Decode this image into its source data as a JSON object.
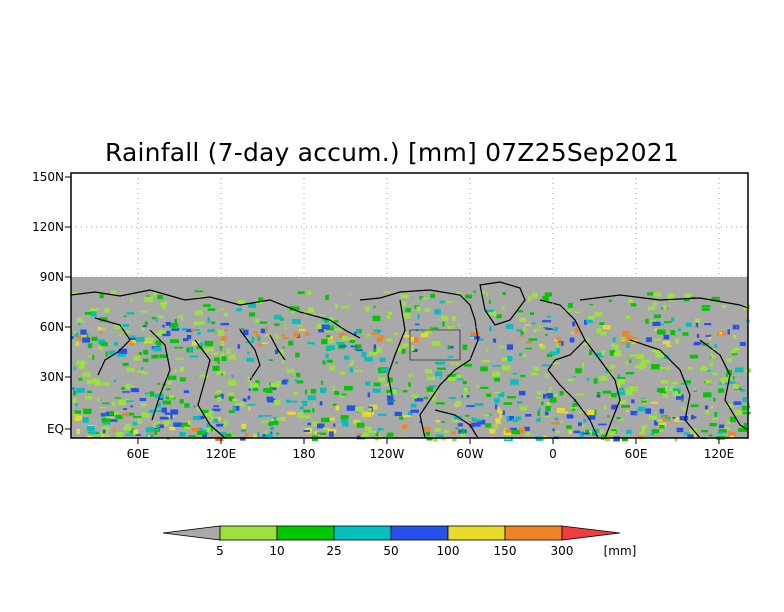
{
  "title": "Rainfall (7-day accum.) [mm] 07Z25Sep2021",
  "y_axis_ticks": [
    "150N",
    "120N",
    "90N",
    "60N",
    "30N",
    "EQ"
  ],
  "x_axis_ticks": [
    "60E",
    "120E",
    "180",
    "120W",
    "60W",
    "0",
    "60E",
    "120E"
  ],
  "colorbar": {
    "labels": [
      "5",
      "10",
      "25",
      "50",
      "100",
      "150",
      "300"
    ],
    "units": "[mm]",
    "colors": [
      "#a9a9a9",
      "#9be23c",
      "#00c800",
      "#00c0c0",
      "#2450f0",
      "#e8dc28",
      "#f08228",
      "#f03c3c"
    ]
  },
  "colors": {
    "no_data": "#a9a9a9",
    "gridline": "#9e9e9e",
    "coastline": "#000000"
  }
}
